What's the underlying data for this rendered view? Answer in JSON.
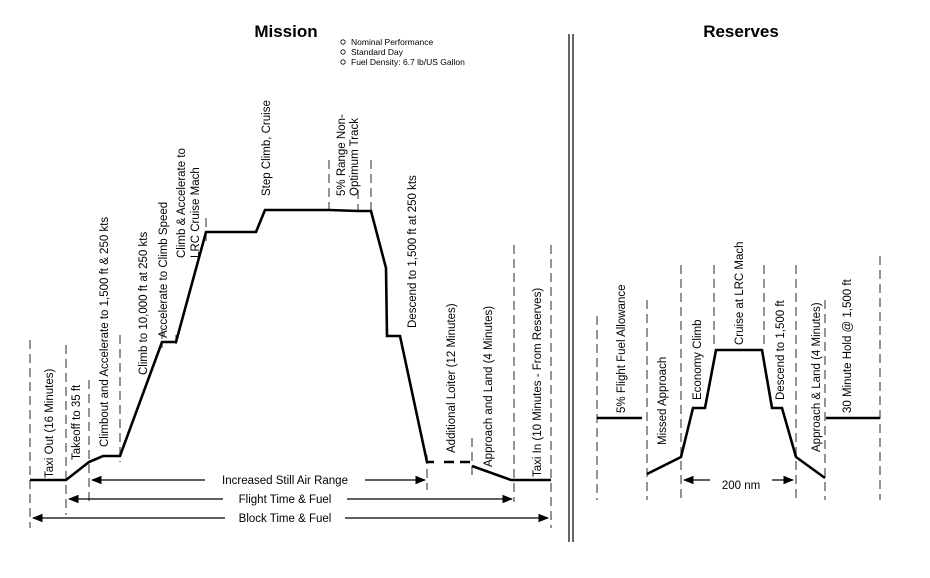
{
  "mission": {
    "title": "Mission",
    "notes": [
      "Nominal Performance",
      "Standard Day",
      "Fuel Density: 6.7 lb/US Gallon"
    ],
    "phases": [
      "Taxi Out (16 Minutes)",
      "Takeoff to 35 ft",
      "Climbout and Accelerate to 1,500 ft & 250 kts",
      "Climb to 10,000 ft at 250 kts",
      "Accelerate to Climb Speed",
      "Climb & Accelerate to",
      "LRC Cruise Mach",
      "Step Climb, Cruise",
      "5% Range Non-",
      "Optimum Track",
      "Descend to 1,500 ft at 250 kts",
      "Additional Loiter (12 Minutes)",
      "Approach and Land (4 Minutes)",
      "Taxi In (10 Minutes - From Reserves)"
    ],
    "dimensions": [
      "Increased Still Air Range",
      "Flight Time & Fuel",
      "Block Time & Fuel"
    ]
  },
  "reserves": {
    "title": "Reserves",
    "phases": [
      "5% Flight Fuel Allowance",
      "Missed Approach",
      "Economy Climb",
      "Cruise at LRC Mach",
      "Descend to 1,500 ft",
      "Approach & Land (4 Minutes)",
      "30 Minute Hold @ 1,500 ft"
    ],
    "dimensions": [
      "200 nm"
    ]
  }
}
